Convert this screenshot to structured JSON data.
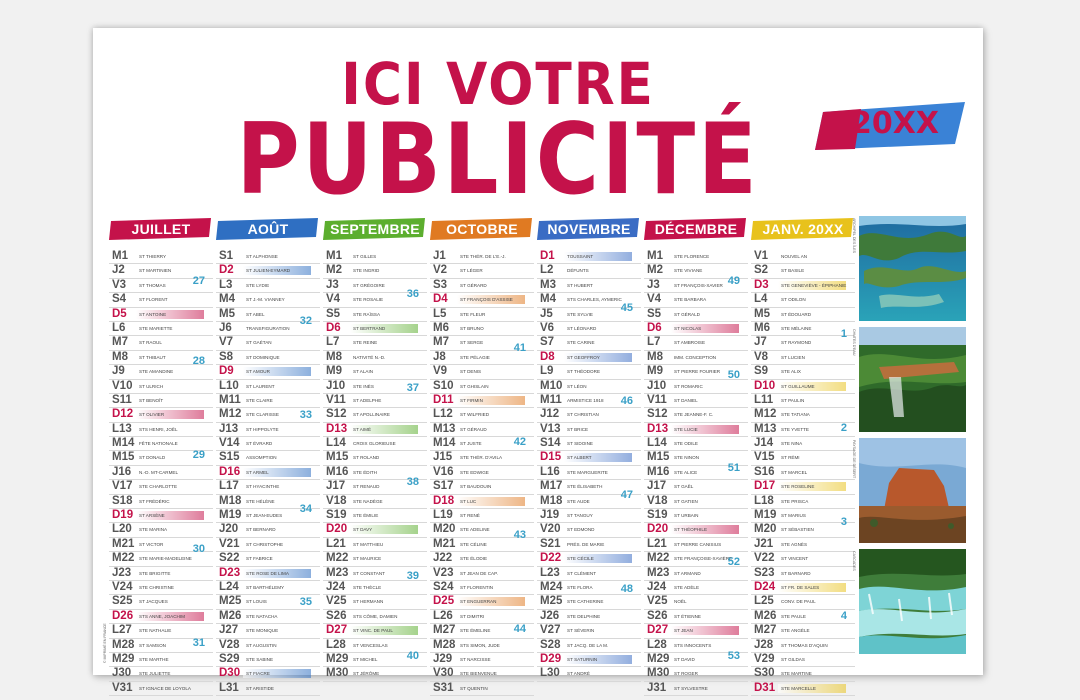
{
  "title_line1": "ICI VOTRE",
  "title_line2": "PUBLICITÉ",
  "year": "20XX",
  "months": [
    {
      "name": "JUILLET",
      "color": "#c4124a",
      "days": [
        [
          "M",
          "1",
          "ST THIERRY"
        ],
        [
          "J",
          "2",
          "ST MARTINIEN"
        ],
        [
          "V",
          "3",
          "ST THOMAS"
        ],
        [
          "S",
          "4",
          "ST FLORENT"
        ],
        [
          "D",
          "5",
          "ST ANTOINE"
        ],
        [
          "L",
          "6",
          "STE MARIETTE"
        ],
        [
          "M",
          "7",
          "ST RAOUL"
        ],
        [
          "M",
          "8",
          "ST THIBAUT"
        ],
        [
          "J",
          "9",
          "STE AMANDINE"
        ],
        [
          "V",
          "10",
          "ST ULRICH"
        ],
        [
          "S",
          "11",
          "ST BENOÎT"
        ],
        [
          "D",
          "12",
          "ST OLIVIER"
        ],
        [
          "L",
          "13",
          "STS HENRI, JOËL"
        ],
        [
          "M",
          "14",
          "FÊTE NATIONALE"
        ],
        [
          "M",
          "15",
          "ST DONALD"
        ],
        [
          "J",
          "16",
          "N.-D. MT-CARMEL"
        ],
        [
          "V",
          "17",
          "STE CHARLOTTE"
        ],
        [
          "S",
          "18",
          "ST FRÉDÉRIC"
        ],
        [
          "D",
          "19",
          "ST ARSÈNE"
        ],
        [
          "L",
          "20",
          "STE MARINA"
        ],
        [
          "M",
          "21",
          "ST VICTOR"
        ],
        [
          "M",
          "22",
          "STE MARIE-MADELEINE"
        ],
        [
          "J",
          "23",
          "STE BRIGITTE"
        ],
        [
          "V",
          "24",
          "STE CHRISTINE"
        ],
        [
          "S",
          "25",
          "ST JACQUES"
        ],
        [
          "D",
          "26",
          "STS ANNE, JOACHIM"
        ],
        [
          "L",
          "27",
          "STE NATHALIE"
        ],
        [
          "M",
          "28",
          "ST SAMSON"
        ],
        [
          "M",
          "29",
          "STE MARTHE"
        ],
        [
          "J",
          "30",
          "STE JULIETTE"
        ],
        [
          "V",
          "31",
          "ST IGNACE DE LOYOLA"
        ]
      ],
      "weeks": [
        [
          "27",
          2
        ],
        [
          "28",
          8
        ],
        [
          "29",
          15
        ],
        [
          "30",
          22
        ],
        [
          "31",
          29
        ]
      ]
    },
    {
      "name": "AOÛT",
      "color": "#2f6fc2",
      "days": [
        [
          "S",
          "1",
          "ST ALPHONSE"
        ],
        [
          "D",
          "2",
          "ST JULIEN-EYMARD"
        ],
        [
          "L",
          "3",
          "STE LYDIE"
        ],
        [
          "M",
          "4",
          "ST J.-M. VIANNEY"
        ],
        [
          "M",
          "5",
          "ST ABEL"
        ],
        [
          "J",
          "6",
          "TRANSFIGURATION"
        ],
        [
          "V",
          "7",
          "ST GAÉTAN"
        ],
        [
          "S",
          "8",
          "ST DOMINIQUE"
        ],
        [
          "D",
          "9",
          "ST AMOUR"
        ],
        [
          "L",
          "10",
          "ST LAURENT"
        ],
        [
          "M",
          "11",
          "STE CLAIRE"
        ],
        [
          "M",
          "12",
          "STE CLARISSE"
        ],
        [
          "J",
          "13",
          "ST HIPPOLYTE"
        ],
        [
          "V",
          "14",
          "ST ÉVRARD"
        ],
        [
          "S",
          "15",
          "ASSOMPTION"
        ],
        [
          "D",
          "16",
          "ST ARMEL"
        ],
        [
          "L",
          "17",
          "ST HYACINTHE"
        ],
        [
          "M",
          "18",
          "STE HÉLÈNE"
        ],
        [
          "M",
          "19",
          "ST JEAN-EUDES"
        ],
        [
          "J",
          "20",
          "ST BERNARD"
        ],
        [
          "V",
          "21",
          "ST CHRISTOPHE"
        ],
        [
          "S",
          "22",
          "ST FABRICE"
        ],
        [
          "D",
          "23",
          "STE ROSE DE LIMA"
        ],
        [
          "L",
          "24",
          "ST BARTHÉLEMY"
        ],
        [
          "M",
          "25",
          "ST LOUIS"
        ],
        [
          "M",
          "26",
          "STE NATACHA"
        ],
        [
          "J",
          "27",
          "STE MONIQUE"
        ],
        [
          "V",
          "28",
          "ST AUGUSTIN"
        ],
        [
          "S",
          "29",
          "STE SABINE"
        ],
        [
          "D",
          "30",
          "ST FIACRE"
        ],
        [
          "L",
          "31",
          "ST ARISTIDE"
        ]
      ],
      "weeks": [
        [
          "32",
          5
        ],
        [
          "33",
          12
        ],
        [
          "34",
          19
        ],
        [
          "35",
          26
        ]
      ]
    },
    {
      "name": "SEPTEMBRE",
      "color": "#5cae2e",
      "days": [
        [
          "M",
          "1",
          "ST GILLES"
        ],
        [
          "M",
          "2",
          "STE INGRID"
        ],
        [
          "J",
          "3",
          "ST GRÉGOIRE"
        ],
        [
          "V",
          "4",
          "STE ROSALIE"
        ],
        [
          "S",
          "5",
          "STE RAÏSSA"
        ],
        [
          "D",
          "6",
          "ST BERTRAND"
        ],
        [
          "L",
          "7",
          "STE REINE"
        ],
        [
          "M",
          "8",
          "NATIVITÉ N.-D."
        ],
        [
          "M",
          "9",
          "ST ALAIN"
        ],
        [
          "J",
          "10",
          "STE INÈS"
        ],
        [
          "V",
          "11",
          "ST ADELPHE"
        ],
        [
          "S",
          "12",
          "ST APOLLINAIRE"
        ],
        [
          "D",
          "13",
          "ST AIMÉ"
        ],
        [
          "L",
          "14",
          "CROIX GLORIEUSE"
        ],
        [
          "M",
          "15",
          "ST ROLAND"
        ],
        [
          "M",
          "16",
          "STE ÉDITH"
        ],
        [
          "J",
          "17",
          "ST RENAUD"
        ],
        [
          "V",
          "18",
          "STE NADÈGE"
        ],
        [
          "S",
          "19",
          "STE ÉMILIE"
        ],
        [
          "D",
          "20",
          "ST DAVY"
        ],
        [
          "L",
          "21",
          "ST MATTHIEU"
        ],
        [
          "M",
          "22",
          "ST MAURICE"
        ],
        [
          "M",
          "23",
          "ST CONSTANT"
        ],
        [
          "J",
          "24",
          "STE THÈCLE"
        ],
        [
          "V",
          "25",
          "ST HERMANN"
        ],
        [
          "S",
          "26",
          "STS CÔME, DAMIEN"
        ],
        [
          "D",
          "27",
          "ST VINC. DE PAUL"
        ],
        [
          "L",
          "28",
          "ST VENCESLAS"
        ],
        [
          "M",
          "29",
          "ST MICHEL"
        ],
        [
          "M",
          "30",
          "ST JÉRÔME"
        ]
      ],
      "weeks": [
        [
          "36",
          3
        ],
        [
          "37",
          10
        ],
        [
          "38",
          17
        ],
        [
          "39",
          24
        ],
        [
          "40",
          30
        ]
      ]
    },
    {
      "name": "OCTOBRE",
      "color": "#e07a22",
      "days": [
        [
          "J",
          "1",
          "STE THÉR. DE L'E.-J."
        ],
        [
          "V",
          "2",
          "ST LÉGER"
        ],
        [
          "S",
          "3",
          "ST GÉRARD"
        ],
        [
          "D",
          "4",
          "ST FRANÇOIS D'ASSISE"
        ],
        [
          "L",
          "5",
          "STE FLEUR"
        ],
        [
          "M",
          "6",
          "ST BRUNO"
        ],
        [
          "M",
          "7",
          "ST SERGE"
        ],
        [
          "J",
          "8",
          "STE PÉLAGIE"
        ],
        [
          "V",
          "9",
          "ST DENIS"
        ],
        [
          "S",
          "10",
          "ST GHISLAIN"
        ],
        [
          "D",
          "11",
          "ST FIRMIN"
        ],
        [
          "L",
          "12",
          "ST WILFRIED"
        ],
        [
          "M",
          "13",
          "ST GÉRAUD"
        ],
        [
          "M",
          "14",
          "ST JUSTE"
        ],
        [
          "J",
          "15",
          "STE THÉR. D'AVILA"
        ],
        [
          "V",
          "16",
          "STE EDWIGE"
        ],
        [
          "S",
          "17",
          "ST BAUDOUIN"
        ],
        [
          "D",
          "18",
          "ST LUC"
        ],
        [
          "L",
          "19",
          "ST RENÉ"
        ],
        [
          "M",
          "20",
          "STE ADELINE"
        ],
        [
          "M",
          "21",
          "STE CÉLINE"
        ],
        [
          "J",
          "22",
          "STE ÉLODIE"
        ],
        [
          "V",
          "23",
          "ST JEAN DE CAP."
        ],
        [
          "S",
          "24",
          "ST FLORENTIN"
        ],
        [
          "D",
          "25",
          "ST ENGUERRAN"
        ],
        [
          "L",
          "26",
          "ST DIMITRI"
        ],
        [
          "M",
          "27",
          "STE ÉMELINE"
        ],
        [
          "M",
          "28",
          "STS SIMON, JUDE"
        ],
        [
          "J",
          "29",
          "ST NARCISSE"
        ],
        [
          "V",
          "30",
          "STE BIENVENUE"
        ],
        [
          "S",
          "31",
          "ST QUENTIN"
        ]
      ],
      "weeks": [
        [
          "41",
          7
        ],
        [
          "42",
          14
        ],
        [
          "43",
          21
        ],
        [
          "44",
          28
        ]
      ]
    },
    {
      "name": "NOVEMBRE",
      "color": "#3a6cc4",
      "days": [
        [
          "D",
          "1",
          "TOUSSAINT"
        ],
        [
          "L",
          "2",
          "DÉFUNTS"
        ],
        [
          "M",
          "3",
          "ST HUBERT"
        ],
        [
          "M",
          "4",
          "STS CHARLES, AYMERIC"
        ],
        [
          "J",
          "5",
          "STE SYLVIE"
        ],
        [
          "V",
          "6",
          "ST LÉONARD"
        ],
        [
          "S",
          "7",
          "STE CARINE"
        ],
        [
          "D",
          "8",
          "ST GEOFFROY"
        ],
        [
          "L",
          "9",
          "ST THÉODORE"
        ],
        [
          "M",
          "10",
          "ST LÉON"
        ],
        [
          "M",
          "11",
          "ARMISTICE 1918"
        ],
        [
          "J",
          "12",
          "ST CHRISTIAN"
        ],
        [
          "V",
          "13",
          "ST BRICE"
        ],
        [
          "S",
          "14",
          "ST SIDOINE"
        ],
        [
          "D",
          "15",
          "ST ALBERT"
        ],
        [
          "L",
          "16",
          "STE MARGUERITE"
        ],
        [
          "M",
          "17",
          "STE ÉLISABETH"
        ],
        [
          "M",
          "18",
          "STE AUDE"
        ],
        [
          "J",
          "19",
          "ST TANGUY"
        ],
        [
          "V",
          "20",
          "ST EDMOND"
        ],
        [
          "S",
          "21",
          "PRÉS. DE MARIE"
        ],
        [
          "D",
          "22",
          "STE CÉCILE"
        ],
        [
          "L",
          "23",
          "ST CLÉMENT"
        ],
        [
          "M",
          "24",
          "STE FLORA"
        ],
        [
          "M",
          "25",
          "STE CATHERINE"
        ],
        [
          "J",
          "26",
          "STE DELPHINE"
        ],
        [
          "V",
          "27",
          "ST SÉVERIN"
        ],
        [
          "S",
          "28",
          "ST JACQ. DE LA M."
        ],
        [
          "D",
          "29",
          "ST SATURNIN"
        ],
        [
          "L",
          "30",
          "ST ANDRÉ"
        ]
      ],
      "weeks": [
        [
          "45",
          4
        ],
        [
          "46",
          11
        ],
        [
          "47",
          18
        ],
        [
          "48",
          25
        ]
      ]
    },
    {
      "name": "DÉCEMBRE",
      "color": "#c4124a",
      "days": [
        [
          "M",
          "1",
          "STE FLORENCE"
        ],
        [
          "M",
          "2",
          "STE VIVIANE"
        ],
        [
          "J",
          "3",
          "ST FRANÇOIS-XAVIER"
        ],
        [
          "V",
          "4",
          "STE BARBARA"
        ],
        [
          "S",
          "5",
          "ST GÉRALD"
        ],
        [
          "D",
          "6",
          "ST NICOLAS"
        ],
        [
          "L",
          "7",
          "ST AMBROISE"
        ],
        [
          "M",
          "8",
          "IMM. CONCEPTION"
        ],
        [
          "M",
          "9",
          "ST PIERRE FOURIER"
        ],
        [
          "J",
          "10",
          "ST ROMARIC"
        ],
        [
          "V",
          "11",
          "ST DANIEL"
        ],
        [
          "S",
          "12",
          "STE JEANNE-F. C."
        ],
        [
          "D",
          "13",
          "STE LUCIE"
        ],
        [
          "L",
          "14",
          "STE ODILE"
        ],
        [
          "M",
          "15",
          "STE NINON"
        ],
        [
          "M",
          "16",
          "STE ALICE"
        ],
        [
          "J",
          "17",
          "ST GAËL"
        ],
        [
          "V",
          "18",
          "ST GATIEN"
        ],
        [
          "S",
          "19",
          "ST URBAIN"
        ],
        [
          "D",
          "20",
          "ST THÉOPHILE"
        ],
        [
          "L",
          "21",
          "ST PIERRE CANISIUS"
        ],
        [
          "M",
          "22",
          "STE FRANÇOISE-XAVIÈRE"
        ],
        [
          "M",
          "23",
          "ST ARMAND"
        ],
        [
          "J",
          "24",
          "STE ADÈLE"
        ],
        [
          "V",
          "25",
          "NOËL"
        ],
        [
          "S",
          "26",
          "ST ÉTIENNE"
        ],
        [
          "D",
          "27",
          "ST JEAN"
        ],
        [
          "L",
          "28",
          "STS INNOCENTS"
        ],
        [
          "M",
          "29",
          "ST DAVID"
        ],
        [
          "M",
          "30",
          "ST ROGER"
        ],
        [
          "J",
          "31",
          "ST SYLVESTRE"
        ]
      ],
      "weeks": [
        [
          "49",
          2
        ],
        [
          "50",
          9
        ],
        [
          "51",
          16
        ],
        [
          "52",
          23
        ],
        [
          "53",
          30
        ]
      ]
    },
    {
      "name": "JANV. 20XX",
      "color": "#e8c21c",
      "days": [
        [
          "V",
          "1",
          "NOUVEL AN"
        ],
        [
          "S",
          "2",
          "ST BASILE"
        ],
        [
          "D",
          "3",
          "STE GENEVIÈVE - ÉPIPHANIE"
        ],
        [
          "L",
          "4",
          "ST ODILON"
        ],
        [
          "M",
          "5",
          "ST ÉDOUARD"
        ],
        [
          "M",
          "6",
          "STE MÉLAINE"
        ],
        [
          "J",
          "7",
          "ST RAYMOND"
        ],
        [
          "V",
          "8",
          "ST LUCIEN"
        ],
        [
          "S",
          "9",
          "STE ALIX"
        ],
        [
          "D",
          "10",
          "ST GUILLAUME"
        ],
        [
          "L",
          "11",
          "ST PAULIN"
        ],
        [
          "M",
          "12",
          "STE TATIANA"
        ],
        [
          "M",
          "13",
          "STE YVETTE"
        ],
        [
          "J",
          "14",
          "STE NINA"
        ],
        [
          "V",
          "15",
          "ST RÉMI"
        ],
        [
          "S",
          "16",
          "ST MARCEL"
        ],
        [
          "D",
          "17",
          "STE ROSELINE"
        ],
        [
          "L",
          "18",
          "STE PRISCA"
        ],
        [
          "M",
          "19",
          "ST MARIUS"
        ],
        [
          "M",
          "20",
          "ST SÉBASTIEN"
        ],
        [
          "J",
          "21",
          "STE AGNÈS"
        ],
        [
          "V",
          "22",
          "ST VINCENT"
        ],
        [
          "S",
          "23",
          "ST BARNARD"
        ],
        [
          "D",
          "24",
          "ST FR. DE SALES"
        ],
        [
          "L",
          "25",
          "CONV. DE PAUL"
        ],
        [
          "M",
          "26",
          "STE PAULE"
        ],
        [
          "M",
          "27",
          "STE ANGÈLE"
        ],
        [
          "J",
          "28",
          "ST THOMAS D'AQUIN"
        ],
        [
          "V",
          "29",
          "ST GILDAS"
        ],
        [
          "S",
          "30",
          "STE MARTINE"
        ],
        [
          "D",
          "31",
          "STE MARCELLE"
        ]
      ],
      "weeks": [
        [
          "1",
          6
        ],
        [
          "2",
          13
        ],
        [
          "3",
          20
        ],
        [
          "4",
          27
        ]
      ]
    }
  ],
  "photo_captions": [
    "ARCHIPEL DES ÎLES",
    "CHUTES D'EAU",
    "PAYSAGE DE DÉSERT",
    "CASCADES"
  ],
  "side_text": "© IMPRIMÉ EN FRANCE"
}
